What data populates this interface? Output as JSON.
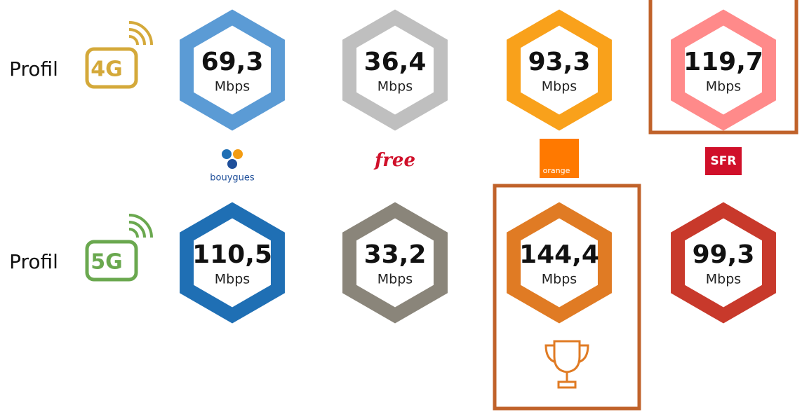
{
  "rows": [
    {
      "label": "Profil",
      "badge": "4G",
      "color": "#d4a93a",
      "cells": [
        {
          "value": "69,3",
          "unit": "Mbps",
          "color": "#5b9bd5"
        },
        {
          "value": "36,4",
          "unit": "Mbps",
          "color": "#bfbfbf"
        },
        {
          "value": "93,3",
          "unit": "Mbps",
          "color": "#f9a11b"
        },
        {
          "value": "119,7",
          "unit": "Mbps",
          "color": "#ff8a8a"
        }
      ]
    },
    {
      "label": "Profil",
      "badge": "5G",
      "color": "#6aa84f",
      "cells": [
        {
          "value": "110,5",
          "unit": "Mbps",
          "color": "#1f6fb4"
        },
        {
          "value": "33,2",
          "unit": "Mbps",
          "color": "#8a857a"
        },
        {
          "value": "144,4",
          "unit": "Mbps",
          "color": "#e07b24"
        },
        {
          "value": "99,3",
          "unit": "Mbps",
          "color": "#c8392b"
        }
      ]
    }
  ],
  "operators": [
    "bouygues",
    "free",
    "orange",
    "SFR"
  ]
}
